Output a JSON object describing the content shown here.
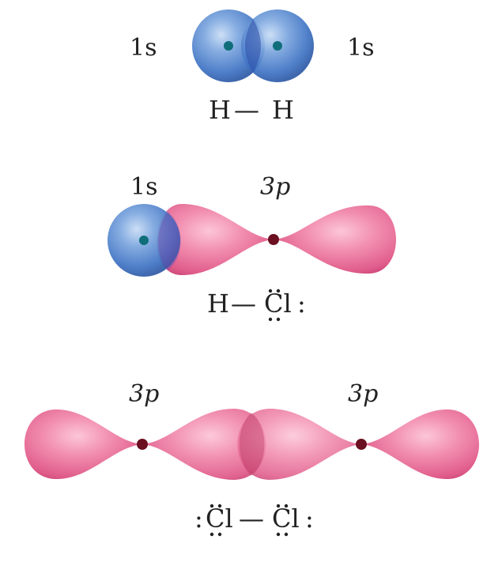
{
  "h2": {
    "left_orbital": "1s",
    "right_orbital": "1s",
    "formula": {
      "left_atom": "H",
      "bond": "—",
      "right_atom": "H"
    }
  },
  "hcl": {
    "left_orbital": "1s",
    "right_orbital": "3p",
    "formula": {
      "left_atom": "H",
      "bond": "—",
      "right_atom": "Cl",
      "right_atom_trail": ":"
    }
  },
  "cl2": {
    "left_orbital": "3p",
    "right_orbital": "3p",
    "formula": {
      "left_atom_lead": ":",
      "left_atom": "Cl",
      "bond": "—",
      "right_atom": "Cl",
      "right_atom_trail": ":"
    }
  },
  "colors": {
    "s_orbital": "#3f73c4",
    "p_orbital": "#e8628f",
    "nucleus_s": "#0f6e7a",
    "nucleus_p": "#6a1020"
  }
}
